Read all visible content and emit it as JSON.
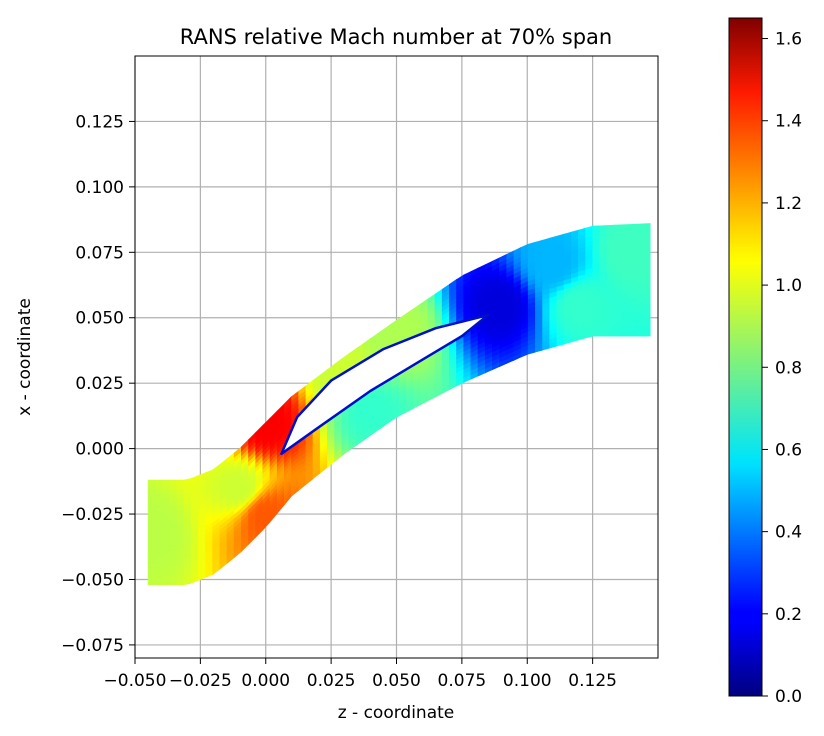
{
  "chart_data": {
    "type": "heatmap",
    "title": "RANS relative Mach number at 70% span",
    "xlabel": "z - coordinate",
    "ylabel": "x - coordinate",
    "xlim": [
      -0.05,
      0.15
    ],
    "ylim": [
      -0.08,
      0.15
    ],
    "xticks": [
      "−0.050",
      "−0.025",
      "0.000",
      "0.025",
      "0.050",
      "0.075",
      "0.100",
      "0.125"
    ],
    "xtick_values": [
      -0.05,
      -0.025,
      0.0,
      0.025,
      0.05,
      0.075,
      0.1,
      0.125
    ],
    "yticks": [
      "−0.075",
      "−0.050",
      "−0.025",
      "0.000",
      "0.025",
      "0.050",
      "0.075",
      "0.100",
      "0.125"
    ],
    "ytick_values": [
      -0.075,
      -0.05,
      -0.025,
      0.0,
      0.025,
      0.05,
      0.075,
      0.1,
      0.125
    ],
    "grid": true,
    "colormap": "jet",
    "colorbar": {
      "range": [
        0.0,
        1.65
      ],
      "ticks": [
        "0.0",
        "0.2",
        "0.4",
        "0.6",
        "0.8",
        "1.0",
        "1.2",
        "1.4",
        "1.6"
      ],
      "tick_values": [
        0.0,
        0.2,
        0.4,
        0.6,
        0.8,
        1.0,
        1.2,
        1.4,
        1.6
      ]
    },
    "blade": {
      "leading_edge": [
        0.006,
        -0.002
      ],
      "trailing_edge": [
        0.085,
        0.051
      ],
      "suction_side": [
        [
          0.006,
          -0.002
        ],
        [
          0.012,
          0.012
        ],
        [
          0.025,
          0.026
        ],
        [
          0.045,
          0.038
        ],
        [
          0.065,
          0.046
        ],
        [
          0.085,
          0.051
        ]
      ],
      "pressure_side": [
        [
          0.006,
          -0.002
        ],
        [
          0.02,
          0.008
        ],
        [
          0.04,
          0.022
        ],
        [
          0.06,
          0.034
        ],
        [
          0.075,
          0.043
        ],
        [
          0.085,
          0.051
        ]
      ]
    },
    "domain_upper_boundary": [
      [
        -0.045,
        -0.012
      ],
      [
        -0.03,
        -0.012
      ],
      [
        -0.02,
        -0.008
      ],
      [
        -0.01,
        0.0
      ],
      [
        0.0,
        0.01
      ],
      [
        0.01,
        0.02
      ],
      [
        0.03,
        0.035
      ],
      [
        0.05,
        0.049
      ],
      [
        0.075,
        0.066
      ],
      [
        0.1,
        0.078
      ],
      [
        0.125,
        0.085
      ],
      [
        0.147,
        0.086
      ]
    ],
    "domain_lower_boundary": [
      [
        -0.045,
        -0.052
      ],
      [
        -0.03,
        -0.052
      ],
      [
        -0.02,
        -0.048
      ],
      [
        -0.01,
        -0.04
      ],
      [
        0.0,
        -0.03
      ],
      [
        0.01,
        -0.018
      ],
      [
        0.03,
        -0.002
      ],
      [
        0.05,
        0.012
      ],
      [
        0.075,
        0.025
      ],
      [
        0.1,
        0.036
      ],
      [
        0.125,
        0.043
      ],
      [
        0.147,
        0.043
      ]
    ],
    "field_samples": [
      {
        "x": -0.045,
        "y": -0.032,
        "value": 0.92
      },
      {
        "x": -0.01,
        "y": -0.015,
        "value": 0.95
      },
      {
        "x": 0.0,
        "y": 0.01,
        "value": 1.45
      },
      {
        "x": 0.0,
        "y": -0.025,
        "value": 1.3
      },
      {
        "x": 0.03,
        "y": 0.03,
        "value": 0.95
      },
      {
        "x": 0.05,
        "y": 0.045,
        "value": 0.9
      },
      {
        "x": 0.09,
        "y": 0.055,
        "value": 0.15
      },
      {
        "x": 0.11,
        "y": 0.07,
        "value": 0.5
      },
      {
        "x": 0.12,
        "y": 0.055,
        "value": 0.7
      },
      {
        "x": 0.04,
        "y": 0.015,
        "value": 0.7
      },
      {
        "x": 0.14,
        "y": 0.075,
        "value": 0.72
      }
    ]
  }
}
